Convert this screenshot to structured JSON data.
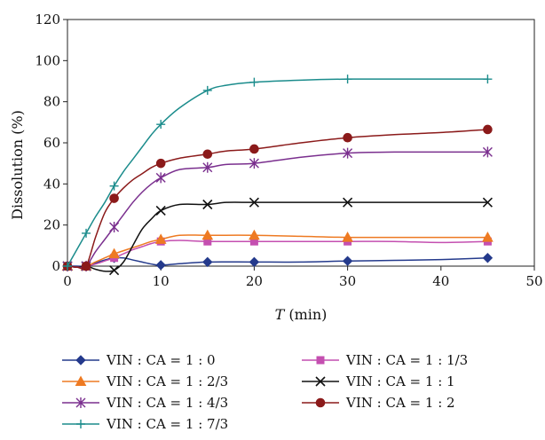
{
  "chart_data": {
    "type": "line",
    "title": "",
    "xlabel": "T",
    "xlabel_unit": " (min)",
    "ylabel": "Dissolution (%)",
    "xlim": [
      0,
      50
    ],
    "ylim": [
      0,
      120
    ],
    "xticks": [
      0,
      10,
      20,
      30,
      40,
      50
    ],
    "yticks": [
      0,
      20,
      40,
      60,
      80,
      100,
      120
    ],
    "grid": false,
    "legend_position": "bottom",
    "series": [
      {
        "name": "VIN : CA = 1 : 0",
        "color": "#243a8c",
        "marker": "diamond",
        "points": [
          [
            0,
            0
          ],
          [
            2,
            0
          ],
          [
            5,
            4
          ],
          [
            10,
            0.5
          ],
          [
            15,
            2
          ],
          [
            20,
            2
          ],
          [
            30,
            2.5
          ],
          [
            45,
            4
          ]
        ],
        "curve": [
          [
            0,
            0
          ],
          [
            1,
            0
          ],
          [
            2,
            0
          ],
          [
            3,
            1.5
          ],
          [
            4,
            3
          ],
          [
            5,
            4
          ],
          [
            6,
            4
          ],
          [
            7,
            3
          ],
          [
            8,
            2
          ],
          [
            9,
            1
          ],
          [
            10,
            0.5
          ],
          [
            12,
            1.2
          ],
          [
            15,
            2
          ],
          [
            20,
            2
          ],
          [
            25,
            2
          ],
          [
            30,
            2.5
          ],
          [
            35,
            2.8
          ],
          [
            40,
            3.2
          ],
          [
            45,
            4
          ]
        ]
      },
      {
        "name": "VIN : CA = 1 : 1/3",
        "color": "#c44fb0",
        "marker": "square",
        "points": [
          [
            0,
            0
          ],
          [
            2,
            0
          ],
          [
            5,
            4
          ],
          [
            10,
            12
          ],
          [
            15,
            12
          ],
          [
            20,
            12
          ],
          [
            30,
            12
          ],
          [
            45,
            12
          ]
        ],
        "curve": [
          [
            0,
            0
          ],
          [
            1,
            -0.5
          ],
          [
            2,
            0
          ],
          [
            3,
            1
          ],
          [
            4,
            2.5
          ],
          [
            5,
            4
          ],
          [
            6,
            6
          ],
          [
            7,
            8
          ],
          [
            8,
            9.5
          ],
          [
            9,
            11
          ],
          [
            10,
            12
          ],
          [
            12,
            12.5
          ],
          [
            15,
            12
          ],
          [
            20,
            12
          ],
          [
            25,
            12
          ],
          [
            30,
            12
          ],
          [
            35,
            12
          ],
          [
            40,
            11.5
          ],
          [
            45,
            12
          ]
        ]
      },
      {
        "name": "VIN : CA = 1 : 2/3",
        "color": "#ee7a22",
        "marker": "triangle",
        "points": [
          [
            0,
            0
          ],
          [
            2,
            0
          ],
          [
            5,
            6
          ],
          [
            10,
            13
          ],
          [
            15,
            15
          ],
          [
            20,
            15
          ],
          [
            30,
            14
          ],
          [
            45,
            14
          ]
        ],
        "curve": [
          [
            0,
            0
          ],
          [
            1,
            -0.5
          ],
          [
            2,
            0
          ],
          [
            3,
            2
          ],
          [
            4,
            4
          ],
          [
            5,
            6
          ],
          [
            6,
            7.5
          ],
          [
            7,
            9
          ],
          [
            8,
            10.5
          ],
          [
            9,
            12
          ],
          [
            10,
            13
          ],
          [
            12,
            15
          ],
          [
            15,
            15
          ],
          [
            20,
            15
          ],
          [
            25,
            14.5
          ],
          [
            30,
            14
          ],
          [
            35,
            14
          ],
          [
            40,
            14
          ],
          [
            45,
            14
          ]
        ]
      },
      {
        "name": "VIN : CA = 1 : 1",
        "color": "#111111",
        "marker": "x",
        "points": [
          [
            0,
            0
          ],
          [
            2,
            0
          ],
          [
            5,
            -2
          ],
          [
            10,
            27
          ],
          [
            15,
            30
          ],
          [
            20,
            31
          ],
          [
            30,
            31
          ],
          [
            45,
            31
          ]
        ],
        "curve": [
          [
            0,
            0
          ],
          [
            1,
            -0.5
          ],
          [
            2,
            0
          ],
          [
            3,
            -1.5
          ],
          [
            4,
            -2.5
          ],
          [
            5,
            -2
          ],
          [
            6,
            2
          ],
          [
            7,
            10
          ],
          [
            8,
            18
          ],
          [
            9,
            23
          ],
          [
            10,
            27
          ],
          [
            12,
            30
          ],
          [
            15,
            30
          ],
          [
            17,
            31
          ],
          [
            20,
            31
          ],
          [
            25,
            31
          ],
          [
            30,
            31
          ],
          [
            35,
            31
          ],
          [
            40,
            31
          ],
          [
            45,
            31
          ]
        ]
      },
      {
        "name": "VIN : CA = 1 : 4/3",
        "color": "#7a2f8e",
        "marker": "asterisk",
        "points": [
          [
            0,
            0
          ],
          [
            2,
            0
          ],
          [
            5,
            19
          ],
          [
            10,
            43
          ],
          [
            15,
            48
          ],
          [
            20,
            50
          ],
          [
            30,
            55
          ],
          [
            45,
            55.5
          ]
        ],
        "curve": [
          [
            0,
            0
          ],
          [
            1,
            -0.5
          ],
          [
            2,
            0
          ],
          [
            3,
            7
          ],
          [
            4,
            13
          ],
          [
            5,
            19
          ],
          [
            6,
            25
          ],
          [
            7,
            31
          ],
          [
            8,
            36
          ],
          [
            9,
            40
          ],
          [
            10,
            43
          ],
          [
            12,
            47
          ],
          [
            15,
            48
          ],
          [
            17,
            49.5
          ],
          [
            20,
            50
          ],
          [
            25,
            53
          ],
          [
            30,
            55
          ],
          [
            35,
            55.5
          ],
          [
            40,
            55.5
          ],
          [
            45,
            55.5
          ]
        ]
      },
      {
        "name": "VIN : CA = 1 : 2",
        "color": "#8b1a1a",
        "marker": "circle",
        "points": [
          [
            0,
            0
          ],
          [
            2,
            0
          ],
          [
            5,
            33
          ],
          [
            10,
            50
          ],
          [
            15,
            54.5
          ],
          [
            20,
            57
          ],
          [
            30,
            62.5
          ],
          [
            45,
            66.5
          ]
        ],
        "curve": [
          [
            0,
            0
          ],
          [
            1,
            -0.5
          ],
          [
            2,
            0
          ],
          [
            3,
            14
          ],
          [
            4,
            26
          ],
          [
            5,
            33
          ],
          [
            6,
            38
          ],
          [
            7,
            42
          ],
          [
            8,
            45
          ],
          [
            9,
            48
          ],
          [
            10,
            50
          ],
          [
            12,
            52.5
          ],
          [
            15,
            54.5
          ],
          [
            17,
            56
          ],
          [
            20,
            57
          ],
          [
            25,
            60
          ],
          [
            30,
            62.5
          ],
          [
            35,
            64
          ],
          [
            40,
            65
          ],
          [
            45,
            66.5
          ]
        ]
      },
      {
        "name": "VIN : CA = 1 : 7/3",
        "color": "#1b8c8c",
        "marker": "plus",
        "points": [
          [
            0,
            0
          ],
          [
            2,
            16
          ],
          [
            5,
            39
          ],
          [
            10,
            69
          ],
          [
            15,
            85.5
          ],
          [
            20,
            89.5
          ],
          [
            30,
            91
          ],
          [
            45,
            91
          ]
        ],
        "curve": [
          [
            0,
            0
          ],
          [
            1,
            8
          ],
          [
            2,
            16
          ],
          [
            3,
            24
          ],
          [
            4,
            31
          ],
          [
            5,
            39
          ],
          [
            6,
            46
          ],
          [
            7,
            52
          ],
          [
            8,
            58
          ],
          [
            9,
            64
          ],
          [
            10,
            69
          ],
          [
            12,
            77
          ],
          [
            15,
            85.5
          ],
          [
            17,
            88
          ],
          [
            20,
            89.5
          ],
          [
            25,
            90.5
          ],
          [
            30,
            91
          ],
          [
            35,
            91
          ],
          [
            40,
            91
          ],
          [
            45,
            91
          ]
        ]
      }
    ]
  }
}
